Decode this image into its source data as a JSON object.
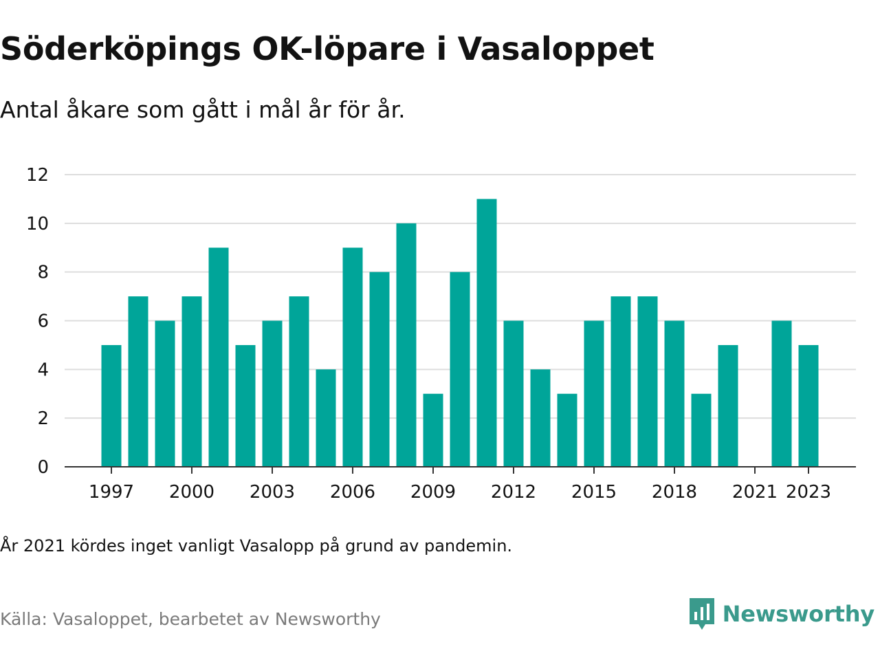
{
  "header": {
    "title": "Söderköpings OK-löpare i Vasaloppet",
    "subtitle": "Antal åkare som gått i mål år för år."
  },
  "footer": {
    "note": "År 2021 kördes inget vanligt Vasalopp på grund av pandemin.",
    "source": "Källa: Vasaloppet, bearbetet av Newsworthy",
    "brand": "Newsworthy",
    "brand_icon": "newsworthy-bar-chart-speech-bubble-icon"
  },
  "colors": {
    "bar": "#00a599",
    "brand": "#3a9a8c",
    "grid": "#dddddd",
    "axis": "#333333",
    "text": "#121212",
    "muted": "#7a7a7a"
  },
  "chart_data": {
    "type": "bar",
    "categories": [
      "1997",
      "1998",
      "1999",
      "2000",
      "2001",
      "2002",
      "2003",
      "2004",
      "2005",
      "2006",
      "2007",
      "2008",
      "2009",
      "2010",
      "2011",
      "2012",
      "2013",
      "2014",
      "2015",
      "2016",
      "2017",
      "2018",
      "2019",
      "2020",
      "2021",
      "2022",
      "2023"
    ],
    "values": [
      5,
      7,
      6,
      7,
      9,
      5,
      6,
      7,
      4,
      9,
      8,
      10,
      3,
      8,
      11,
      6,
      4,
      3,
      6,
      7,
      7,
      6,
      3,
      5,
      null,
      6,
      5
    ],
    "x_tick_labels": [
      "1997",
      "2000",
      "2003",
      "2006",
      "2009",
      "2012",
      "2015",
      "2018",
      "2021",
      "2023"
    ],
    "y_ticks": [
      0,
      2,
      4,
      6,
      8,
      10,
      12
    ],
    "ylim": [
      0,
      12
    ],
    "grid": true,
    "legend": false
  }
}
